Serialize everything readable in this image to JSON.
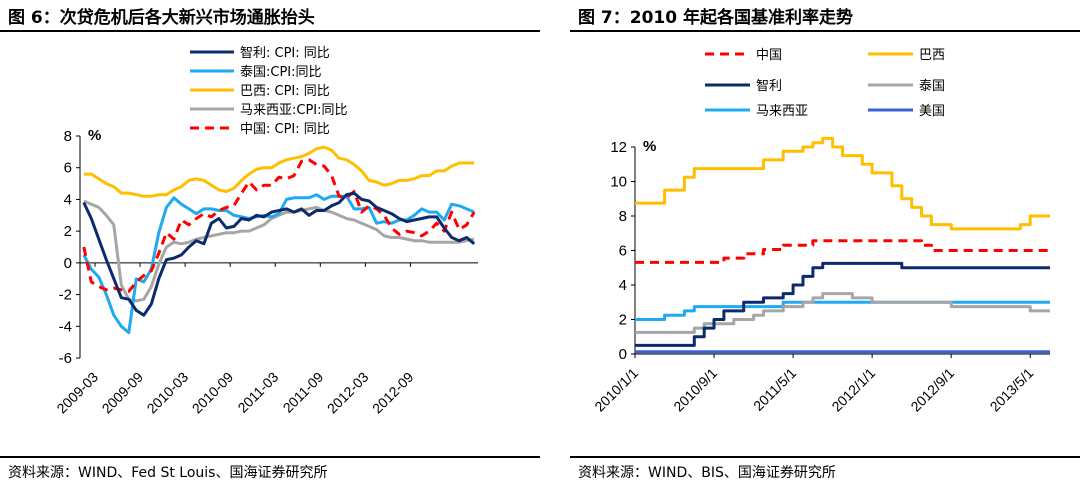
{
  "left": {
    "title": "图 6：次贷危机后各大新兴市场通胀抬头",
    "source": "资料来源：WIND、Fed St Louis、国海证券研究所",
    "chart_data": {
      "type": "line",
      "unit": "%",
      "ylim": [
        -6,
        8
      ],
      "yticks": [
        "8",
        "6",
        "4",
        "2",
        "0",
        "-2",
        "-4",
        "-6"
      ],
      "xticks": [
        "2009-03",
        "2009-09",
        "2010-03",
        "2010-09",
        "2011-03",
        "2011-09",
        "2012-03",
        "2012-09"
      ],
      "x_start": "2009-01",
      "x_end": "2013-05",
      "legend_position": "top-left",
      "series": [
        {
          "name": "智利: CPI: 同比",
          "color": "#0d2a6e",
          "dash": false,
          "values": [
            3.8,
            2.8,
            1.5,
            0.2,
            -1.0,
            -2.2,
            -2.3,
            -3.0,
            -3.3,
            -2.6,
            -1.0,
            0.2,
            0.3,
            0.5,
            1.0,
            1.4,
            1.2,
            2.5,
            2.8,
            2.2,
            2.3,
            2.8,
            2.7,
            3.0,
            2.9,
            3.2,
            3.3,
            3.4,
            3.2,
            3.4,
            3.0,
            3.3,
            3.3,
            3.6,
            3.8,
            4.3,
            4.4,
            4.0,
            3.9,
            3.5,
            3.3,
            3.1,
            2.8,
            2.6,
            2.7,
            2.8,
            2.9,
            2.9,
            2.2,
            1.6,
            1.4,
            1.6,
            1.2
          ]
        },
        {
          "name": "泰国:CPI:同比",
          "color": "#1eaaf1",
          "dash": false,
          "values": [
            0.5,
            -0.4,
            -0.9,
            -2.0,
            -3.3,
            -4.0,
            -4.4,
            -1.0,
            -1.2,
            -0.4,
            1.9,
            3.5,
            4.1,
            3.7,
            3.4,
            3.1,
            3.4,
            3.4,
            3.3,
            3.3,
            3.0,
            2.9,
            2.8,
            2.9,
            3.0,
            2.9,
            3.1,
            4.0,
            4.1,
            4.1,
            4.1,
            4.3,
            4.0,
            4.2,
            4.2,
            4.2,
            3.4,
            3.4,
            3.5,
            2.5,
            2.6,
            2.5,
            2.7,
            2.7,
            3.0,
            3.4,
            3.2,
            3.2,
            2.7,
            3.7,
            3.6,
            3.4,
            3.2
          ]
        },
        {
          "name": "巴西:  CPI:  同比",
          "color": "#ffbf00",
          "dash": false,
          "values": [
            5.6,
            5.6,
            5.3,
            5.0,
            4.8,
            4.4,
            4.4,
            4.3,
            4.2,
            4.2,
            4.3,
            4.3,
            4.6,
            4.8,
            5.2,
            5.3,
            5.2,
            4.9,
            4.6,
            4.5,
            4.7,
            5.2,
            5.6,
            5.9,
            6.0,
            6.0,
            6.3,
            6.5,
            6.6,
            6.7,
            6.9,
            7.2,
            7.3,
            7.1,
            6.6,
            6.5,
            6.2,
            5.8,
            5.2,
            5.1,
            4.9,
            5.0,
            5.2,
            5.2,
            5.3,
            5.5,
            5.5,
            5.8,
            5.8,
            6.1,
            6.3,
            6.3,
            6.3
          ]
        },
        {
          "name": "马来西亚:CPI:同比",
          "color": "#a6a6a6",
          "dash": false,
          "values": [
            3.9,
            3.7,
            3.5,
            3.0,
            2.4,
            -1.4,
            -2.3,
            -2.4,
            -2.3,
            -1.5,
            -0.1,
            1.0,
            1.3,
            1.2,
            1.3,
            1.5,
            1.6,
            1.7,
            1.8,
            1.9,
            1.9,
            2.0,
            2.0,
            2.2,
            2.4,
            2.8,
            3.0,
            3.2,
            3.2,
            3.3,
            3.4,
            3.5,
            3.3,
            3.2,
            3.0,
            2.8,
            2.7,
            2.5,
            2.3,
            2.1,
            1.7,
            1.6,
            1.6,
            1.5,
            1.4,
            1.4,
            1.3,
            1.3,
            1.3,
            1.3,
            1.3,
            1.4,
            1.5
          ]
        },
        {
          "name": "中国:  CPI:  同比",
          "color": "#ff0000",
          "dash": true,
          "values": [
            1.0,
            -1.2,
            -1.5,
            -1.7,
            -1.6,
            -1.7,
            -1.8,
            -1.2,
            -0.8,
            -0.5,
            0.6,
            1.9,
            1.5,
            2.7,
            2.4,
            2.8,
            3.1,
            2.9,
            3.3,
            3.5,
            3.6,
            4.4,
            5.1,
            4.6,
            4.9,
            4.9,
            5.4,
            5.3,
            5.5,
            6.4,
            6.5,
            6.2,
            6.1,
            5.5,
            4.2,
            4.1,
            4.5,
            3.2,
            3.6,
            3.4,
            3.0,
            2.2,
            1.8,
            2.0,
            1.9,
            1.7,
            2.0,
            2.5,
            2.0,
            3.2,
            2.1,
            2.4,
            3.2
          ]
        }
      ]
    }
  },
  "right": {
    "title": "图 7：2010 年起各国基准利率走势",
    "source": "资料来源：WIND、BIS、国海证券研究所",
    "chart_data": {
      "type": "line",
      "step": true,
      "unit": "%",
      "ylim": [
        0,
        12
      ],
      "yticks": [
        "12",
        "10",
        "8",
        "6",
        "4",
        "2",
        "0"
      ],
      "xticks": [
        "2010/1/1",
        "2010/9/1",
        "2011/5/1",
        "2012/1/1",
        "2012/9/1",
        "2013/5/1"
      ],
      "x_start": "2010-01",
      "x_end": "2013-06",
      "legend_position": "top",
      "series": [
        {
          "name": "中国",
          "color": "#ff0000",
          "dash": true,
          "values": [
            5.31,
            5.31,
            5.31,
            5.31,
            5.31,
            5.31,
            5.31,
            5.31,
            5.31,
            5.56,
            5.56,
            5.81,
            5.81,
            6.06,
            6.06,
            6.31,
            6.31,
            6.31,
            6.56,
            6.56,
            6.56,
            6.56,
            6.56,
            6.56,
            6.56,
            6.56,
            6.56,
            6.56,
            6.56,
            6.31,
            6.0,
            6.0,
            6.0,
            6.0,
            6.0,
            6.0,
            6.0,
            6.0,
            6.0,
            6.0,
            6.0,
            6.0
          ]
        },
        {
          "name": "巴西",
          "color": "#ffbf00",
          "dash": false,
          "values": [
            8.75,
            8.75,
            8.75,
            9.5,
            9.5,
            10.25,
            10.75,
            10.75,
            10.75,
            10.75,
            10.75,
            10.75,
            10.75,
            11.25,
            11.25,
            11.75,
            11.75,
            12.0,
            12.25,
            12.5,
            12.0,
            11.5,
            11.5,
            11.0,
            10.5,
            10.5,
            9.75,
            9.0,
            8.5,
            8.0,
            7.5,
            7.5,
            7.25,
            7.25,
            7.25,
            7.25,
            7.25,
            7.25,
            7.25,
            7.5,
            8.0,
            8.0
          ]
        },
        {
          "name": "智利",
          "color": "#0d2a6e",
          "dash": false,
          "values": [
            0.5,
            0.5,
            0.5,
            0.5,
            0.5,
            0.5,
            1.0,
            1.5,
            2.0,
            2.5,
            2.5,
            3.0,
            3.0,
            3.25,
            3.25,
            3.5,
            4.0,
            4.5,
            5.0,
            5.25,
            5.25,
            5.25,
            5.25,
            5.25,
            5.25,
            5.25,
            5.25,
            5.0,
            5.0,
            5.0,
            5.0,
            5.0,
            5.0,
            5.0,
            5.0,
            5.0,
            5.0,
            5.0,
            5.0,
            5.0,
            5.0,
            5.0
          ]
        },
        {
          "name": "泰国",
          "color": "#a6a6a6",
          "dash": false,
          "values": [
            1.25,
            1.25,
            1.25,
            1.25,
            1.25,
            1.25,
            1.5,
            1.75,
            1.75,
            1.75,
            2.0,
            2.0,
            2.25,
            2.5,
            2.5,
            2.75,
            2.75,
            3.0,
            3.25,
            3.5,
            3.5,
            3.5,
            3.25,
            3.25,
            3.0,
            3.0,
            3.0,
            3.0,
            3.0,
            3.0,
            3.0,
            3.0,
            2.75,
            2.75,
            2.75,
            2.75,
            2.75,
            2.75,
            2.75,
            2.75,
            2.5,
            2.5
          ]
        },
        {
          "name": "马来西亚",
          "color": "#1eaaf1",
          "dash": false,
          "values": [
            2.0,
            2.0,
            2.0,
            2.25,
            2.25,
            2.5,
            2.75,
            2.75,
            2.75,
            2.75,
            2.75,
            2.75,
            2.75,
            2.75,
            2.75,
            3.0,
            3.0,
            3.0,
            3.0,
            3.0,
            3.0,
            3.0,
            3.0,
            3.0,
            3.0,
            3.0,
            3.0,
            3.0,
            3.0,
            3.0,
            3.0,
            3.0,
            3.0,
            3.0,
            3.0,
            3.0,
            3.0,
            3.0,
            3.0,
            3.0,
            3.0,
            3.0
          ]
        },
        {
          "name": "美国",
          "color": "#3a62d8",
          "dash": false,
          "values": [
            0.125,
            0.125,
            0.125,
            0.125,
            0.125,
            0.125,
            0.125,
            0.125,
            0.125,
            0.125,
            0.125,
            0.125,
            0.125,
            0.125,
            0.125,
            0.125,
            0.125,
            0.125,
            0.125,
            0.125,
            0.125,
            0.125,
            0.125,
            0.125,
            0.125,
            0.125,
            0.125,
            0.125,
            0.125,
            0.125,
            0.125,
            0.125,
            0.125,
            0.125,
            0.125,
            0.125,
            0.125,
            0.125,
            0.125,
            0.125,
            0.125,
            0.125
          ]
        }
      ]
    }
  }
}
